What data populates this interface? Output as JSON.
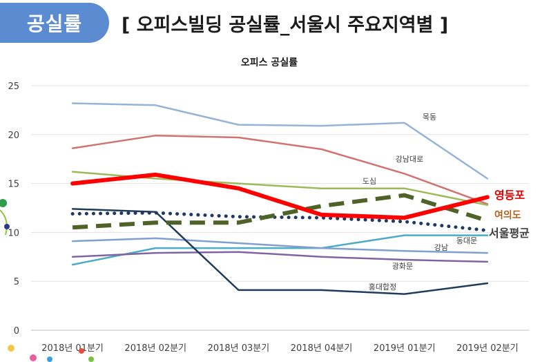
{
  "header": {
    "tag_label": "공실률",
    "title": "[ 오피스빌딩 공실률_서울시 주요지역별 ]"
  },
  "chart_data": {
    "type": "line",
    "title": "오피스 공실률",
    "categories": [
      "2018년 01분기",
      "2018년 02분기",
      "2018년 03분기",
      "2018년 04분기",
      "2019년 01분기",
      "2019년 02분기"
    ],
    "ylim": [
      0,
      25
    ],
    "yticks": [
      0,
      5,
      10,
      15,
      20,
      25
    ],
    "grid": true,
    "series": [
      {
        "name": "목동",
        "values": [
          23.2,
          23.0,
          21.0,
          20.9,
          21.2,
          15.5
        ],
        "color": "#95b3d7",
        "style": "solid"
      },
      {
        "name": "강남대로",
        "values": [
          18.6,
          19.9,
          19.7,
          18.5,
          16.0,
          12.9
        ],
        "color": "#d07371",
        "style": "solid"
      },
      {
        "name": "도심",
        "values": [
          16.2,
          15.5,
          15.0,
          14.5,
          14.5,
          12.8
        ],
        "color": "#9bbb59",
        "style": "solid"
      },
      {
        "name": "영등포",
        "values": [
          15.0,
          15.9,
          14.5,
          11.8,
          11.5,
          13.6
        ],
        "color": "#ff0000",
        "style": "bold"
      },
      {
        "name": "여의도",
        "values": [
          10.5,
          11.0,
          11.0,
          12.7,
          13.8,
          11.2
        ],
        "color": "#4f6228",
        "style": "dashed"
      },
      {
        "name": "서울평균",
        "values": [
          11.9,
          12.0,
          11.6,
          11.5,
          11.1,
          10.2
        ],
        "color": "#1f3864",
        "style": "dotted"
      },
      {
        "name": "동대문",
        "values": [
          6.7,
          8.4,
          8.4,
          8.4,
          9.7,
          9.7
        ],
        "color": "#4bacc6",
        "style": "solid"
      },
      {
        "name": "강남",
        "values": [
          9.1,
          9.4,
          8.9,
          8.4,
          8.1,
          7.9
        ],
        "color": "#7f9fcf",
        "style": "solid"
      },
      {
        "name": "광화문",
        "values": [
          7.5,
          7.9,
          8.0,
          7.5,
          7.2,
          7.0
        ],
        "color": "#8064a2",
        "style": "solid"
      },
      {
        "name": "홍대합정",
        "values": [
          12.4,
          12.1,
          4.1,
          4.1,
          3.7,
          4.8
        ],
        "color": "#203a5a",
        "style": "solid"
      }
    ]
  }
}
